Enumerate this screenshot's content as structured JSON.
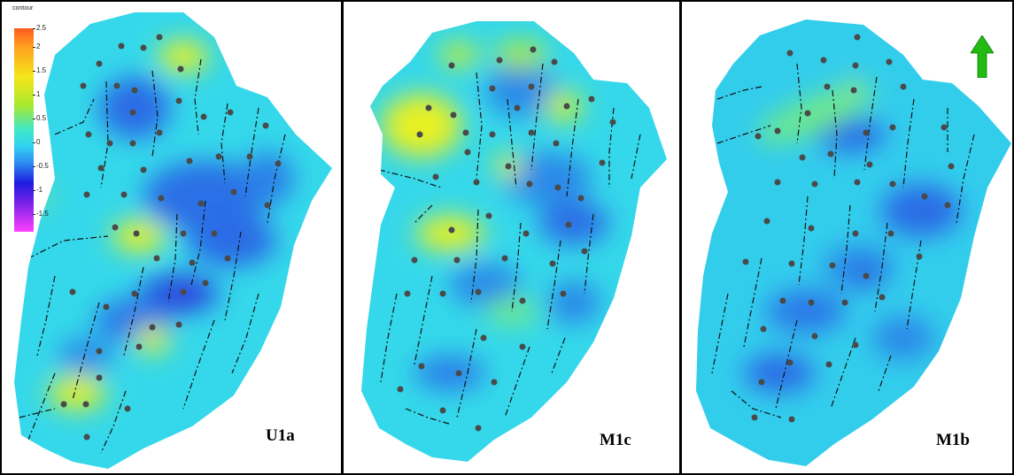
{
  "panels": [
    {
      "label": "U1a"
    },
    {
      "label": "M1c"
    },
    {
      "label": "M1b"
    }
  ],
  "legend": {
    "title": "contour",
    "ticks": [
      "2.5",
      "2",
      "1.5",
      "1",
      "0.5",
      "0",
      "-0.5",
      "-1",
      "-1.5"
    ],
    "colors": [
      "#ff5a1e",
      "#ffa020",
      "#f4e61a",
      "#a8e830",
      "#3ee8c8",
      "#31d2f2",
      "#2d8ef0",
      "#1c1ce0",
      "#7a22e8",
      "#ff40ff"
    ]
  },
  "north_arrow": {
    "color": "#22bb11",
    "icon": "north-arrow-icon"
  },
  "map_colors": {
    "base": "#35d8ea",
    "low": "#2a6ce6",
    "very_low": "#3a2ad8",
    "high": "#e8f023",
    "medium_high": "#a9e838",
    "well": "#4a4a4a",
    "fault": "#111111"
  }
}
